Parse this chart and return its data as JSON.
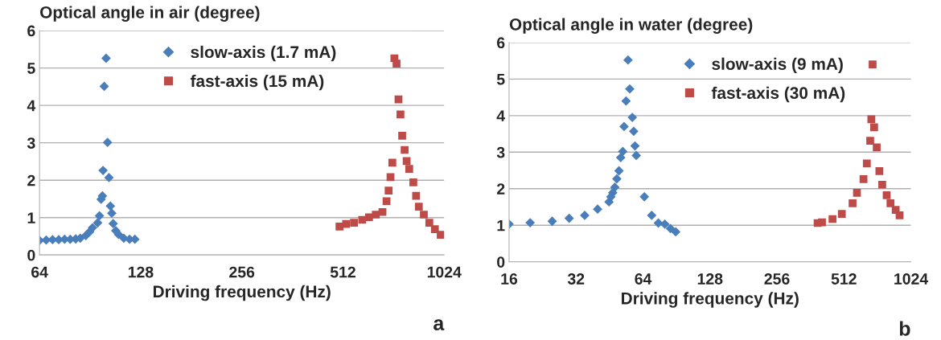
{
  "chart_data": [
    {
      "type": "scatter",
      "ylabel": "Optical angle in air (degree)",
      "xlabel": "Driving frequency (Hz)",
      "log": "x",
      "xlim": [
        64,
        1024
      ],
      "xticks": [
        64,
        128,
        256,
        512,
        1024
      ],
      "ylim": [
        0,
        6
      ],
      "yticks": [
        0,
        1,
        2,
        3,
        4,
        5,
        6
      ],
      "grid": "y",
      "legend": "top",
      "annotations": [
        "a"
      ],
      "series": [
        {
          "name": "slow-axis (1.7 mA)",
          "color": "#4a7ebb",
          "marker": "diamond",
          "x": [
            64,
            67,
            70,
            73,
            76,
            79,
            82,
            84.6,
            87.9,
            90.2,
            92,
            95.3,
            96.5,
            98.5,
            97.6,
            98.9,
            99.7,
            101,
            102,
            103,
            104,
            105,
            106,
            107.9,
            110,
            114,
            118.6,
            123
          ],
          "values": [
            0.39,
            0.4,
            0.41,
            0.41,
            0.42,
            0.42,
            0.43,
            0.45,
            0.52,
            0.62,
            0.73,
            0.86,
            1.05,
            1.58,
            1.49,
            2.26,
            4.51,
            5.26,
            3.01,
            2.07,
            1.31,
            1.12,
            0.84,
            0.65,
            0.55,
            0.45,
            0.42,
            0.42
          ]
        },
        {
          "name": "fast-axis (15 mA)",
          "color": "#be4b48",
          "marker": "square",
          "x": [
            500,
            523,
            552,
            584,
            612,
            641,
            671,
            690,
            700,
            709,
            718,
            728,
            739,
            749,
            759,
            768,
            781,
            792,
            806,
            829,
            845,
            861,
            891,
            925,
            961,
            1000
          ],
          "values": [
            0.76,
            0.83,
            0.86,
            0.94,
            1.01,
            1.08,
            1.15,
            1.44,
            1.72,
            2.08,
            2.47,
            5.26,
            5.12,
            4.16,
            3.76,
            3.19,
            2.81,
            2.51,
            2.3,
            1.94,
            1.58,
            1.29,
            1.08,
            0.86,
            0.69,
            0.54
          ]
        }
      ]
    },
    {
      "type": "scatter",
      "ylabel": "Optical angle in water (degree)",
      "xlabel": "Driving frequency (Hz)",
      "log": "x",
      "xlim": [
        16,
        1024
      ],
      "xticks": [
        16,
        32,
        64,
        128,
        256,
        512,
        1024
      ],
      "ylim": [
        0,
        6
      ],
      "yticks": [
        0,
        1,
        2,
        3,
        4,
        5,
        6
      ],
      "grid": "y",
      "legend": "top",
      "annotations": [
        "b"
      ],
      "series": [
        {
          "name": "slow-axis (9 mA)",
          "color": "#4a7ebb",
          "marker": "diamond",
          "x": [
            16,
            19.9,
            25,
            29.8,
            35,
            40,
            45,
            45.9,
            46.8,
            47.8,
            48.8,
            49.9,
            50.8,
            51.9,
            52.6,
            53.7,
            54.8,
            55.8,
            57.3,
            58.1,
            58.9,
            59.7,
            64.9,
            70,
            75,
            80.2,
            85,
            89.8
          ],
          "values": [
            1.03,
            1.07,
            1.11,
            1.19,
            1.27,
            1.44,
            1.64,
            1.78,
            1.89,
            2.04,
            2.27,
            2.49,
            2.85,
            3.02,
            3.7,
            4.4,
            5.52,
            4.73,
            3.95,
            3.57,
            3.17,
            2.91,
            1.78,
            1.27,
            1.06,
            1.03,
            0.91,
            0.82
          ]
        },
        {
          "name": "fast-axis (30 mA)",
          "color": "#be4b48",
          "marker": "square",
          "x": [
            390,
            408,
            455,
            501,
            560,
            586,
            627,
            649,
            672,
            680,
            689,
            700,
            719,
            739,
            761,
            797,
            829,
            875,
            911
          ],
          "values": [
            1.06,
            1.08,
            1.17,
            1.31,
            1.6,
            1.89,
            2.26,
            2.69,
            3.31,
            3.9,
            5.4,
            3.68,
            3.13,
            2.48,
            2.11,
            1.82,
            1.6,
            1.42,
            1.27
          ]
        }
      ]
    }
  ]
}
